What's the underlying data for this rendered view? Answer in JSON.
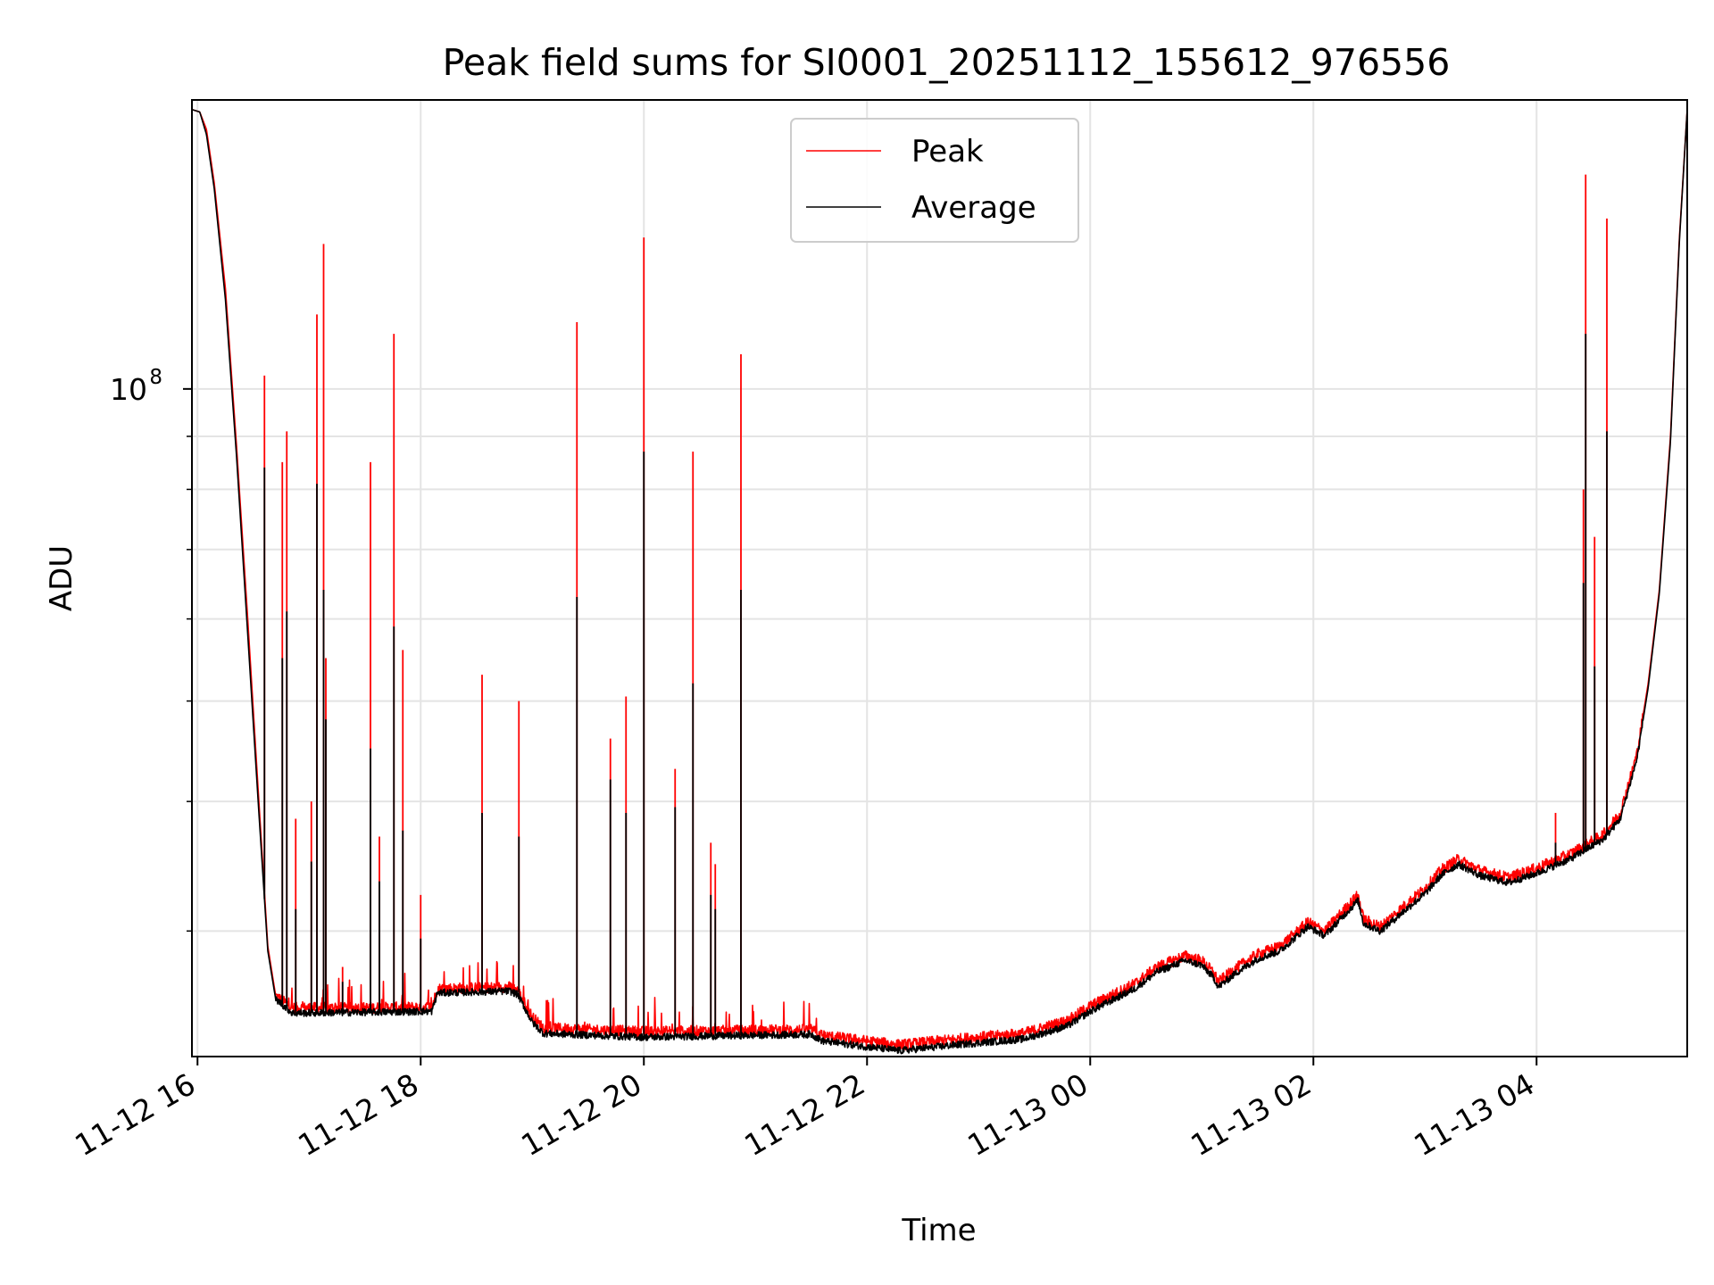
{
  "chart_data": {
    "type": "line",
    "title": "Peak field sums for SI0001_20251112_155612_976556",
    "xlabel": "Time",
    "ylabel": "ADU",
    "yscale": "log",
    "ylim": [
      22700000,
      190000000
    ],
    "xlim_hours": [
      -0.05,
      13.35
    ],
    "x_unit": "hours since 11-12 16:00",
    "grid": true,
    "legend_position": "top-center",
    "x_ticks": [
      {
        "hours": 0,
        "label": "11-12 16"
      },
      {
        "hours": 2,
        "label": "11-12 18"
      },
      {
        "hours": 4,
        "label": "11-12 20"
      },
      {
        "hours": 6,
        "label": "11-12 22"
      },
      {
        "hours": 8,
        "label": "11-13 00"
      },
      {
        "hours": 10,
        "label": "11-13 02"
      },
      {
        "hours": 12,
        "label": "11-13 04"
      }
    ],
    "y_major_ticks": [
      {
        "value": 100000000,
        "base": "10",
        "exponent": "8"
      }
    ],
    "y_minor_ticks": [
      30000000,
      40000000,
      50000000,
      60000000,
      70000000,
      80000000,
      90000000,
      200000000
    ],
    "series": [
      {
        "name": "Peak",
        "color": "#ff0000",
        "baseline_points": [
          [
            -0.05,
            186000000
          ],
          [
            0.02,
            185000000
          ],
          [
            0.08,
            178000000
          ],
          [
            0.15,
            158000000
          ],
          [
            0.25,
            125000000
          ],
          [
            0.35,
            88000000
          ],
          [
            0.45,
            60000000
          ],
          [
            0.55,
            40000000
          ],
          [
            0.63,
            29000000
          ],
          [
            0.7,
            26000000
          ],
          [
            0.85,
            25300000
          ],
          [
            1.5,
            25300000
          ],
          [
            2.1,
            25350000
          ],
          [
            2.15,
            26400000
          ],
          [
            2.8,
            26500000
          ],
          [
            2.87,
            26300000
          ],
          [
            3.0,
            24800000
          ],
          [
            3.1,
            24200000
          ],
          [
            4.0,
            24000000
          ],
          [
            5.5,
            24100000
          ],
          [
            5.6,
            23800000
          ],
          [
            6.0,
            23500000
          ],
          [
            6.3,
            23300000
          ],
          [
            6.8,
            23600000
          ],
          [
            7.4,
            23900000
          ],
          [
            7.8,
            24600000
          ],
          [
            8.0,
            25400000
          ],
          [
            8.4,
            26700000
          ],
          [
            8.6,
            27700000
          ],
          [
            8.85,
            28400000
          ],
          [
            9.0,
            28100000
          ],
          [
            9.1,
            27400000
          ],
          [
            9.15,
            26800000
          ],
          [
            9.3,
            27600000
          ],
          [
            9.5,
            28500000
          ],
          [
            9.7,
            29000000
          ],
          [
            9.95,
            30600000
          ],
          [
            10.1,
            30000000
          ],
          [
            10.4,
            32500000
          ],
          [
            10.45,
            30800000
          ],
          [
            10.6,
            30300000
          ],
          [
            11.0,
            33000000
          ],
          [
            11.15,
            34400000
          ],
          [
            11.3,
            35200000
          ],
          [
            11.5,
            34300000
          ],
          [
            11.75,
            33800000
          ],
          [
            12.0,
            34500000
          ],
          [
            12.3,
            35600000
          ],
          [
            12.6,
            37200000
          ],
          [
            12.75,
            39000000
          ],
          [
            12.9,
            44500000
          ],
          [
            13.0,
            52000000
          ],
          [
            13.1,
            64000000
          ],
          [
            13.2,
            90000000
          ],
          [
            13.28,
            140000000
          ],
          [
            13.35,
            186000000
          ]
        ],
        "spikes": [
          [
            0.6,
            103000000
          ],
          [
            0.76,
            85000000
          ],
          [
            0.8,
            91000000
          ],
          [
            0.88,
            38500000
          ],
          [
            1.02,
            40000000
          ],
          [
            1.07,
            118000000
          ],
          [
            1.13,
            138000000
          ],
          [
            1.15,
            55000000
          ],
          [
            1.3,
            27700000
          ],
          [
            1.55,
            85000000
          ],
          [
            1.63,
            37000000
          ],
          [
            1.76,
            113000000
          ],
          [
            1.84,
            56000000
          ],
          [
            2.0,
            32500000
          ],
          [
            2.55,
            53000000
          ],
          [
            2.88,
            50000000
          ],
          [
            3.4,
            116000000
          ],
          [
            3.7,
            46000000
          ],
          [
            3.84,
            50500000
          ],
          [
            4.0,
            140000000
          ],
          [
            4.28,
            43000000
          ],
          [
            4.44,
            87000000
          ],
          [
            4.6,
            36500000
          ],
          [
            4.64,
            34800000
          ],
          [
            4.87,
            108000000
          ],
          [
            12.17,
            39000000
          ],
          [
            12.42,
            80000000
          ],
          [
            12.44,
            161000000
          ],
          [
            12.52,
            72000000
          ],
          [
            12.63,
            146000000
          ]
        ]
      },
      {
        "name": "Average",
        "color": "#000000",
        "baseline_points": [
          [
            -0.05,
            186000000
          ],
          [
            0.02,
            185000000
          ],
          [
            0.08,
            176000000
          ],
          [
            0.15,
            156000000
          ],
          [
            0.25,
            122000000
          ],
          [
            0.35,
            86000000
          ],
          [
            0.45,
            58000000
          ],
          [
            0.55,
            39000000
          ],
          [
            0.63,
            28700000
          ],
          [
            0.7,
            25800000
          ],
          [
            0.85,
            25000000
          ],
          [
            1.5,
            25050000
          ],
          [
            2.1,
            25100000
          ],
          [
            2.15,
            26150000
          ],
          [
            2.8,
            26250000
          ],
          [
            2.87,
            26050000
          ],
          [
            3.0,
            24500000
          ],
          [
            3.1,
            23900000
          ],
          [
            4.0,
            23700000
          ],
          [
            5.5,
            23850000
          ],
          [
            5.6,
            23500000
          ],
          [
            6.0,
            23200000
          ],
          [
            6.3,
            23000000
          ],
          [
            6.8,
            23300000
          ],
          [
            7.4,
            23600000
          ],
          [
            7.8,
            24300000
          ],
          [
            8.0,
            25100000
          ],
          [
            8.4,
            26400000
          ],
          [
            8.6,
            27400000
          ],
          [
            8.85,
            28100000
          ],
          [
            9.0,
            27800000
          ],
          [
            9.1,
            27100000
          ],
          [
            9.15,
            26500000
          ],
          [
            9.3,
            27300000
          ],
          [
            9.5,
            28200000
          ],
          [
            9.7,
            28700000
          ],
          [
            9.95,
            30300000
          ],
          [
            10.1,
            29700000
          ],
          [
            10.4,
            32100000
          ],
          [
            10.45,
            30500000
          ],
          [
            10.6,
            30000000
          ],
          [
            11.0,
            32600000
          ],
          [
            11.15,
            34000000
          ],
          [
            11.3,
            34800000
          ],
          [
            11.5,
            33900000
          ],
          [
            11.75,
            33400000
          ],
          [
            12.0,
            34100000
          ],
          [
            12.3,
            35200000
          ],
          [
            12.6,
            36800000
          ],
          [
            12.75,
            38500000
          ],
          [
            12.9,
            44000000
          ],
          [
            13.0,
            51500000
          ],
          [
            13.1,
            63500000
          ],
          [
            13.2,
            89000000
          ],
          [
            13.28,
            139000000
          ],
          [
            13.35,
            186000000
          ]
        ],
        "spikes": [
          [
            0.6,
            84000000
          ],
          [
            0.76,
            55000000
          ],
          [
            0.8,
            61000000
          ],
          [
            0.88,
            31500000
          ],
          [
            1.02,
            35000000
          ],
          [
            1.07,
            81000000
          ],
          [
            1.13,
            64000000
          ],
          [
            1.15,
            48000000
          ],
          [
            1.3,
            26800000
          ],
          [
            1.55,
            45000000
          ],
          [
            1.63,
            33500000
          ],
          [
            1.76,
            59000000
          ],
          [
            1.84,
            37500000
          ],
          [
            2.0,
            29500000
          ],
          [
            2.55,
            39000000
          ],
          [
            2.88,
            37000000
          ],
          [
            3.4,
            63000000
          ],
          [
            3.7,
            42000000
          ],
          [
            3.84,
            39000000
          ],
          [
            4.0,
            87000000
          ],
          [
            4.28,
            39500000
          ],
          [
            4.44,
            52000000
          ],
          [
            4.6,
            32500000
          ],
          [
            4.64,
            31500000
          ],
          [
            4.87,
            64000000
          ],
          [
            12.17,
            36500000
          ],
          [
            12.42,
            65000000
          ],
          [
            12.44,
            113000000
          ],
          [
            12.52,
            54000000
          ],
          [
            12.63,
            91000000
          ]
        ]
      }
    ]
  }
}
